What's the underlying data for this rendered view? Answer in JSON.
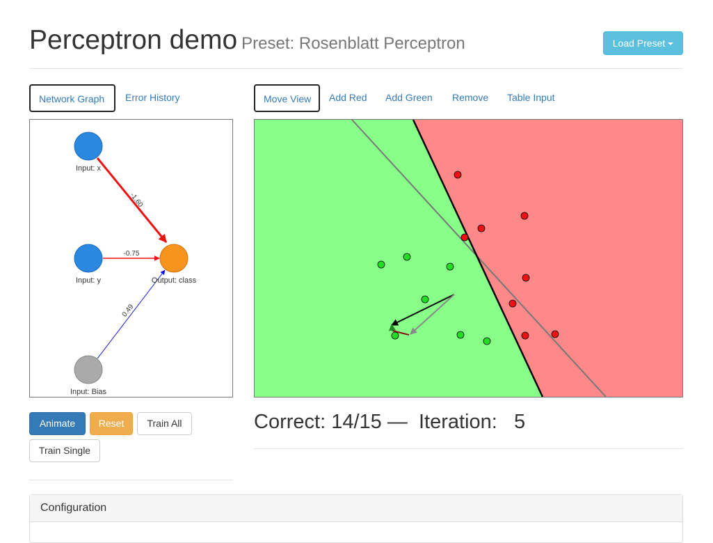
{
  "header": {
    "title": "Perceptron demo",
    "subtitle": "Preset: Rosenblatt Perceptron",
    "load_preset_label": "Load Preset"
  },
  "left_tabs": [
    {
      "label": "Network Graph",
      "active": true
    },
    {
      "label": "Error History",
      "active": false
    }
  ],
  "right_tabs": [
    {
      "label": "Move View",
      "active": true
    },
    {
      "label": "Add Red",
      "active": false
    },
    {
      "label": "Add Green",
      "active": false
    },
    {
      "label": "Remove",
      "active": false
    },
    {
      "label": "Table Input",
      "active": false
    }
  ],
  "network_graph": {
    "nodes": {
      "input_x": "Input: x",
      "input_y": "Input: y",
      "input_bias": "Input: Bias",
      "output": "Output: class"
    },
    "weights": {
      "x": "-1.60",
      "y": "-0.75",
      "bias": "0.49"
    }
  },
  "buttons": {
    "animate": "Animate",
    "reset": "Reset",
    "train_all": "Train All",
    "train_single": "Train Single"
  },
  "status": {
    "correct_label": "Correct:",
    "correct_value": "14/15",
    "separator": "—",
    "iteration_label": "Iteration:",
    "iteration_value": "5"
  },
  "config": {
    "title": "Configuration"
  },
  "colors": {
    "green_region": "#88ff88",
    "red_region": "#ff8888",
    "green_point": "#22dd22",
    "red_point": "#ee1111",
    "input_node": "#2a88e0",
    "output_node": "#f7941d",
    "bias_node": "#aaaaaa"
  }
}
